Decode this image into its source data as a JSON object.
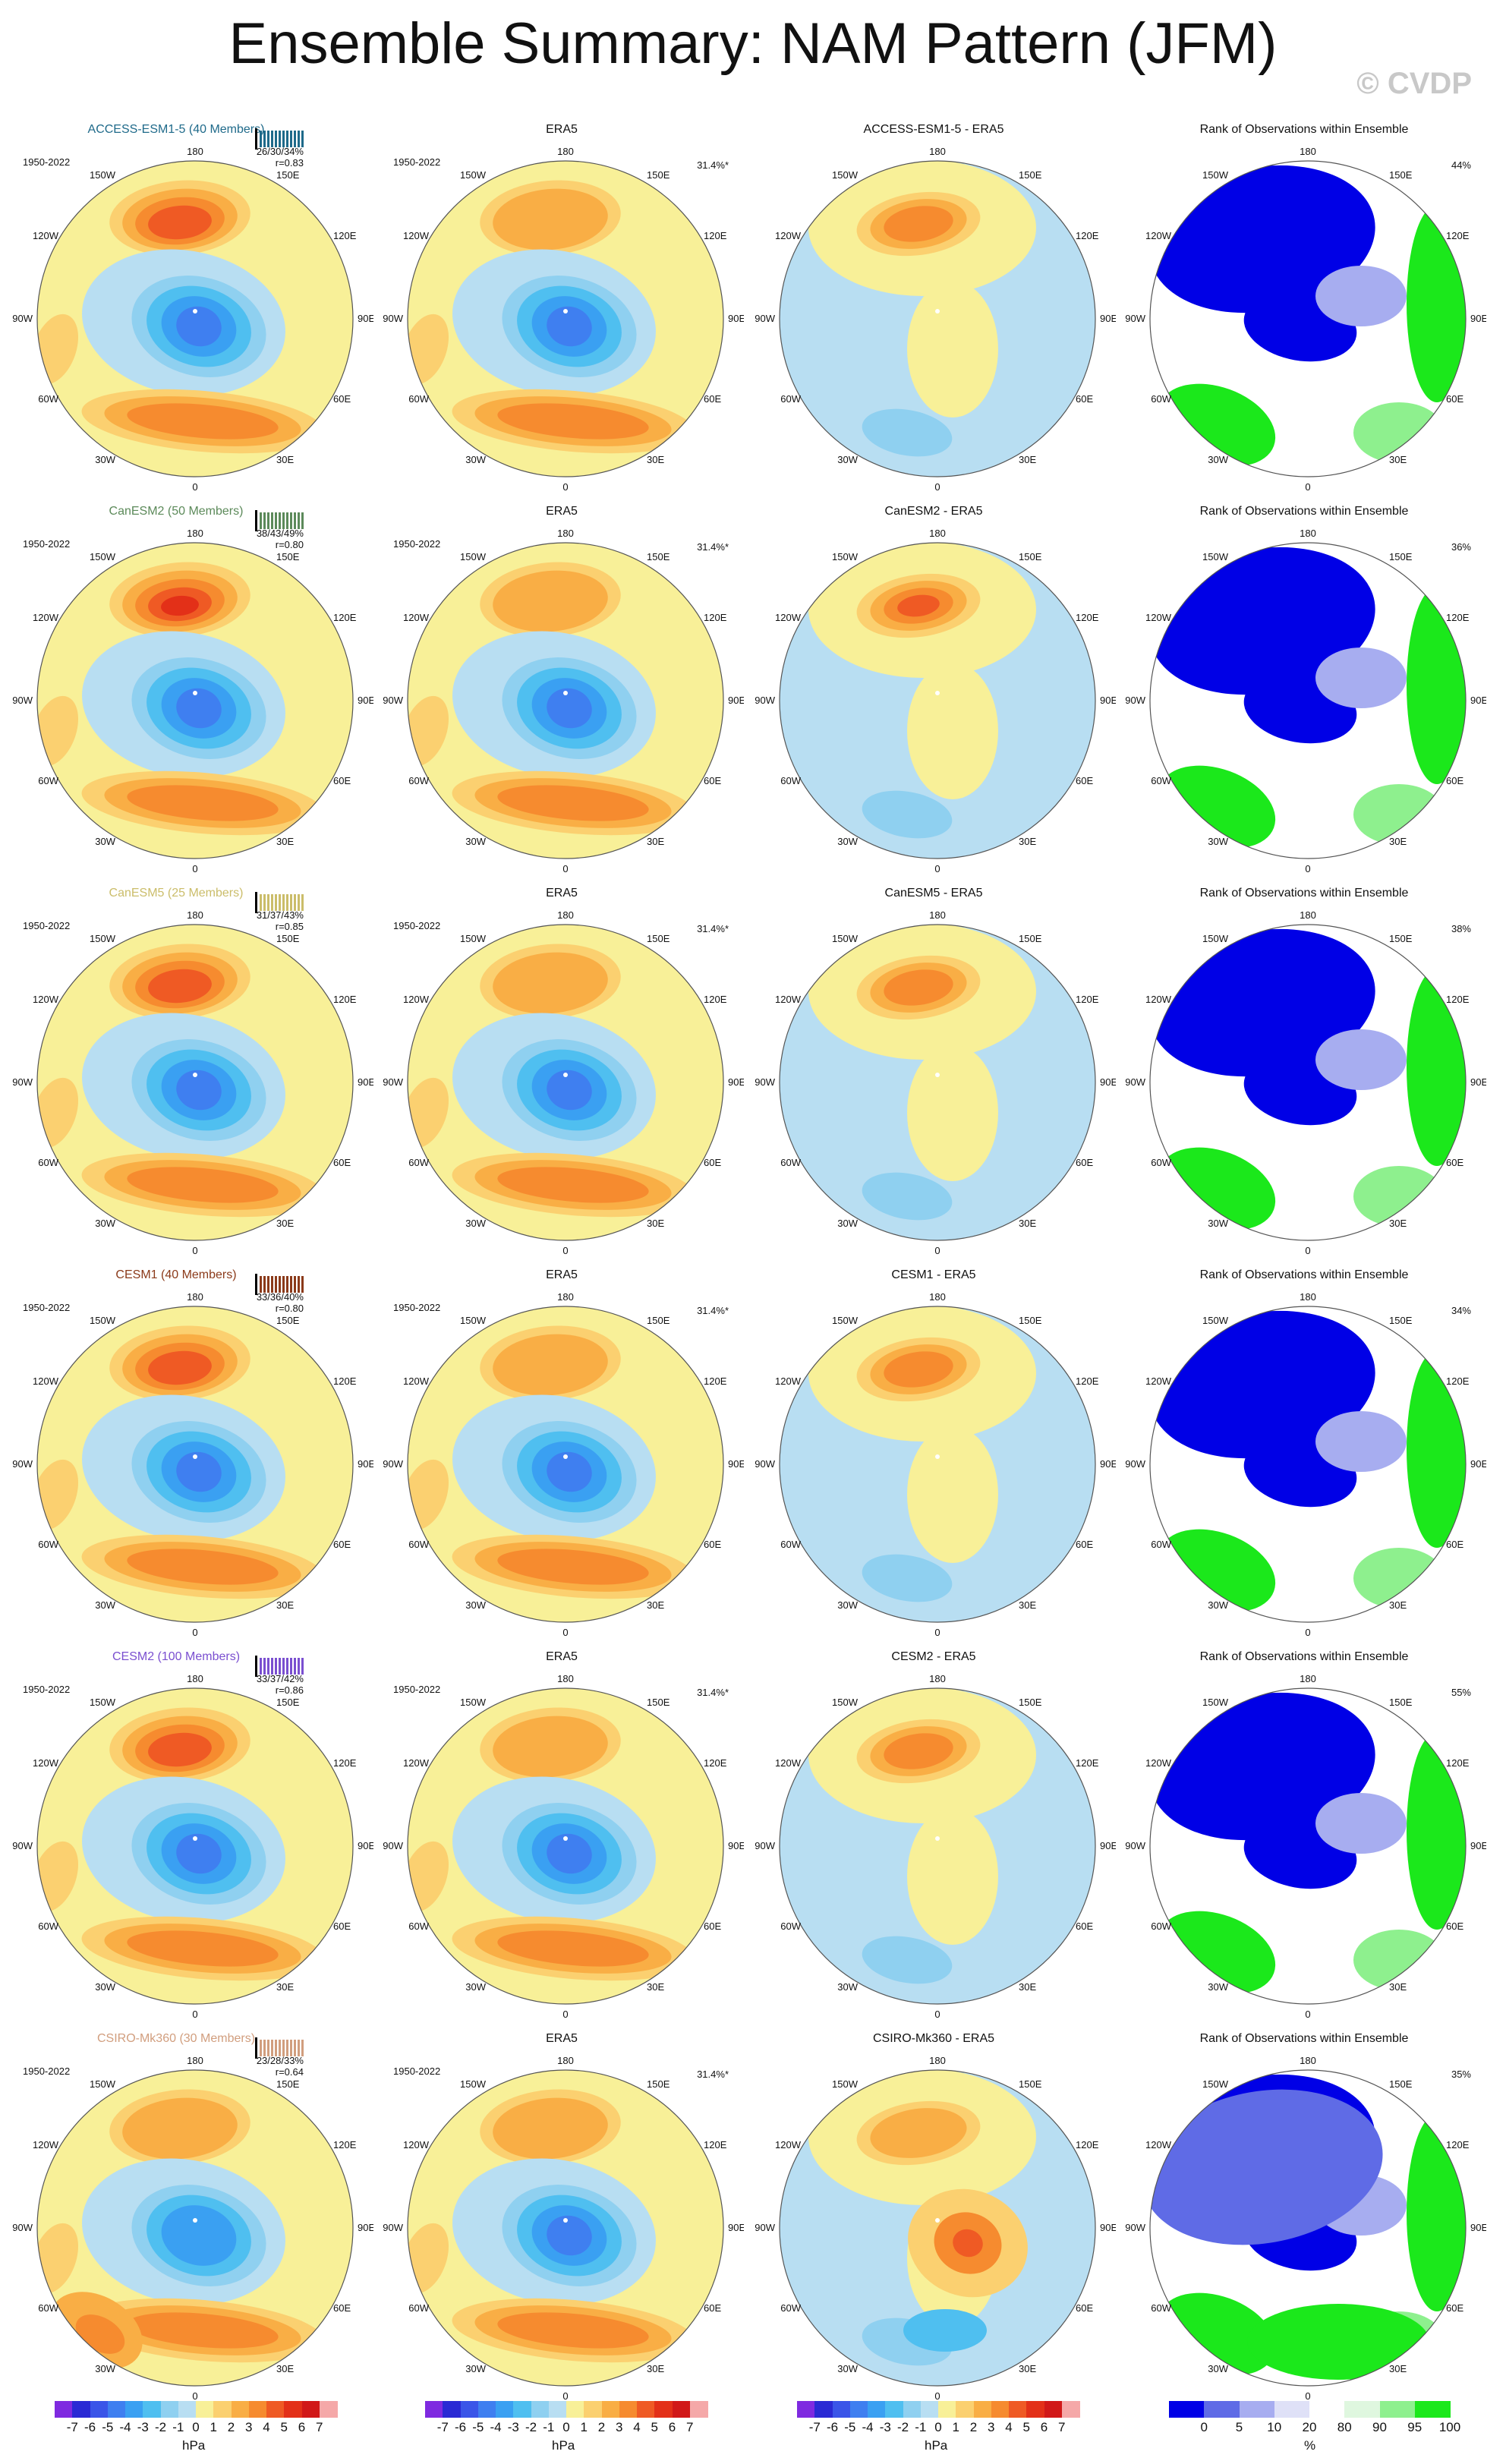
{
  "title": "Ensemble Summary: NAM Pattern (JFM)",
  "copyright": "© CVDP",
  "colors": {
    "model_colors": [
      "#1f6a8a",
      "#5c8a5a",
      "#cbbd6a",
      "#8b3a1a",
      "#7a4fd0",
      "#d19e7e"
    ]
  },
  "rows": [
    {
      "model": "ACCESS-ESM1-5 (40 Members)",
      "model_color": "#1f6a8a",
      "years": "1950-2022",
      "stats": "26/30/34%",
      "r": "r=0.83",
      "diff_title": "ACCESS-ESM1-5 - ERA5",
      "rank_pct": "44%"
    },
    {
      "model": "CanESM2 (50 Members)",
      "model_color": "#5c8a5a",
      "years": "1950-2022",
      "stats": "38/43/49%",
      "r": "r=0.80",
      "diff_title": "CanESM2 - ERA5",
      "rank_pct": "36%"
    },
    {
      "model": "CanESM5 (25 Members)",
      "model_color": "#cbbd6a",
      "years": "1950-2022",
      "stats": "31/37/43%",
      "r": "r=0.85",
      "diff_title": "CanESM5 - ERA5",
      "rank_pct": "38%"
    },
    {
      "model": "CESM1 (40 Members)",
      "model_color": "#8b3a1a",
      "years": "1950-2022",
      "stats": "33/36/40%",
      "r": "r=0.80",
      "diff_title": "CESM1 - ERA5",
      "rank_pct": "34%"
    },
    {
      "model": "CESM2 (100 Members)",
      "model_color": "#7a4fd0",
      "years": "1950-2022",
      "stats": "33/37/42%",
      "r": "r=0.86",
      "diff_title": "CESM2 - ERA5",
      "rank_pct": "55%"
    },
    {
      "model": "CSIRO-Mk360 (30 Members)",
      "model_color": "#d19e7e",
      "years": "1950-2022",
      "stats": "23/28/33%",
      "r": "r=0.64",
      "diff_title": "CSIRO-Mk360 - ERA5",
      "rank_pct": "35%"
    }
  ],
  "era5": {
    "title": "ERA5",
    "years": "1950-2022",
    "pct": "31.4%*"
  },
  "rank_title": "Rank of Observations within Ensemble",
  "map_labels": {
    "top": "180",
    "bottom": "0",
    "left": "90W",
    "right": "90E",
    "upper_left_outer": "120W",
    "upper_left_inner": "150W",
    "upper_right_outer": "120E",
    "upper_right_inner": "150E",
    "lower_left_outer": "60W",
    "lower_left_inner": "30W",
    "lower_right_outer": "60E",
    "lower_right_inner": "30E"
  },
  "chart_data": {
    "type": "heatmap",
    "projection": "north polar stereographic",
    "hpa_colorbar": {
      "ticks": [
        "-7",
        "-6",
        "-5",
        "-4",
        "-3",
        "-2",
        "-1",
        "0",
        "1",
        "2",
        "3",
        "4",
        "5",
        "6",
        "7"
      ],
      "unit": "hPa",
      "colors": [
        "#7f2ae0",
        "#2a2ad4",
        "#3a55e8",
        "#3f7ff0",
        "#3aa0f2",
        "#4fbff0",
        "#8fd0f0",
        "#b8def2",
        "#f8f098",
        "#fbd070",
        "#f9ae45",
        "#f68b2f",
        "#ef5a24",
        "#e33018",
        "#d11818",
        "#f5a8a8"
      ]
    },
    "rank_colorbar": {
      "ticks": [
        "0",
        "5",
        "10",
        "20",
        "80",
        "90",
        "95",
        "100"
      ],
      "unit": "%",
      "colors": [
        "#0000e6",
        "#5f6be6",
        "#a7adf0",
        "#dfe1f7",
        "#ffffff",
        "#dff7df",
        "#8ef08e",
        "#1be81b"
      ]
    }
  }
}
